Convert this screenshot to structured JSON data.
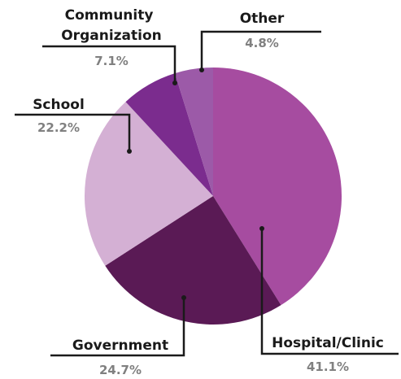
{
  "chart_data": {
    "type": "pie",
    "title": "",
    "unit": "%",
    "start": "12 o'clock",
    "direction": "clockwise",
    "slices": [
      {
        "label": "Hospital/Clinic",
        "value": 41.1,
        "display": "41.1%",
        "color": "#a64ca0"
      },
      {
        "label": "Government",
        "value": 24.7,
        "display": "24.7%",
        "color": "#5a1a55"
      },
      {
        "label": "School",
        "value": 22.2,
        "display": "22.2%",
        "color": "#d4b0d4"
      },
      {
        "label": "Community Organization",
        "value": 7.1,
        "display": "7.1%",
        "color": "#7b2c8e"
      },
      {
        "label": "Other",
        "value": 4.8,
        "display": "4.8%",
        "color": "#9c5aa8"
      }
    ]
  }
}
